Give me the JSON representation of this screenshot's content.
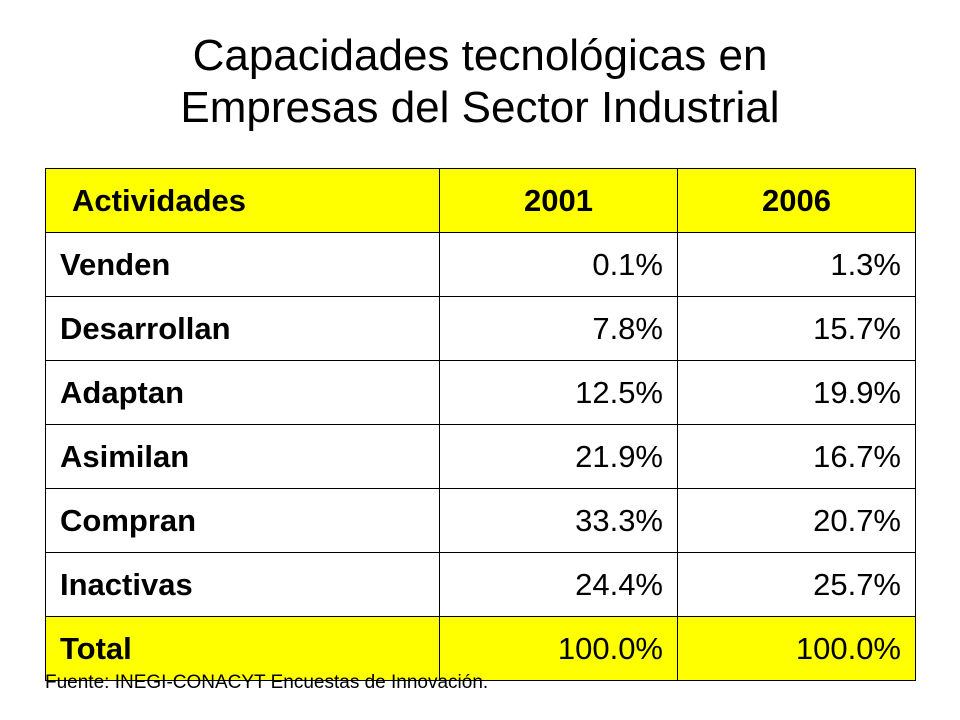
{
  "title": {
    "line1": "Capacidades tecnológicas en",
    "line2": "Empresas del Sector Industrial"
  },
  "table": {
    "headers": [
      "Actividades",
      "2001",
      "2006"
    ],
    "rows": [
      {
        "label": "Venden",
        "y2001": "0.1%",
        "y2006": "1.3%"
      },
      {
        "label": "Desarrollan",
        "y2001": "7.8%",
        "y2006": "15.7%"
      },
      {
        "label": "Adaptan",
        "y2001": "12.5%",
        "y2006": "19.9%"
      },
      {
        "label": "Asimilan",
        "y2001": "21.9%",
        "y2006": "16.7%"
      },
      {
        "label": "Compran",
        "y2001": "33.3%",
        "y2006": "20.7%"
      },
      {
        "label": "Inactivas",
        "y2001": "24.4%",
        "y2006": "25.7%"
      }
    ],
    "total": {
      "label": "Total",
      "y2001": "100.0%",
      "y2006": "100.0%"
    }
  },
  "source": "Fuente: INEGI-CONACYT Encuestas de Innovación.",
  "colors": {
    "highlight": "#ffff00",
    "text": "#000000",
    "background": "#ffffff"
  }
}
